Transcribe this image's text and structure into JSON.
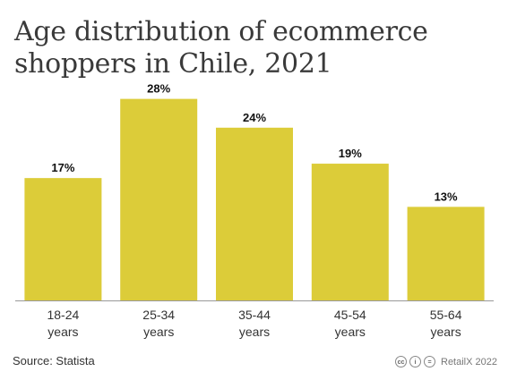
{
  "title": "Age distribution of ecommerce shoppers in Chile, 2021",
  "source": "Source: Statista",
  "credit": "RetailX 2022",
  "icons": [
    "cc-icon",
    "by-icon",
    "nd-icon"
  ],
  "colors": {
    "bar": "#dccc39",
    "axis": "#999999",
    "label": "#111111",
    "tick": "#333333"
  },
  "chart_data": {
    "type": "bar",
    "categories": [
      "18-24 years",
      "25-34 years",
      "35-44 years",
      "45-54 years",
      "55-64 years"
    ],
    "category_lines": [
      [
        "18-24",
        "years"
      ],
      [
        "25-34",
        "years"
      ],
      [
        "35-44",
        "years"
      ],
      [
        "45-54",
        "years"
      ],
      [
        "55-64",
        "years"
      ]
    ],
    "values": [
      17,
      28,
      24,
      19,
      13
    ],
    "value_labels": [
      "17%",
      "28%",
      "24%",
      "19%",
      "13%"
    ],
    "title": "Age distribution of ecommerce shoppers in Chile, 2021",
    "ylim": [
      0,
      30
    ],
    "grid": false,
    "legend": "none"
  }
}
